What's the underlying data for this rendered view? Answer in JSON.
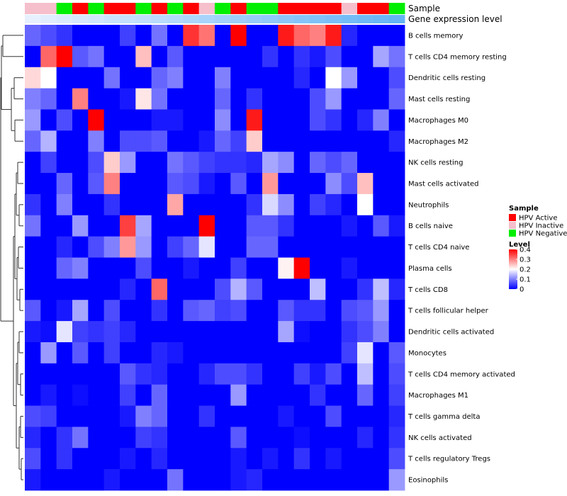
{
  "chart_data": {
    "type": "heatmap",
    "title": "",
    "track_labels": {
      "sample": "Sample",
      "expression": "Gene expression level"
    },
    "rows": [
      "B cells memory",
      "T cells CD4 memory resting",
      "Dendritic cells resting",
      "Mast cells resting",
      "Macrophages M0",
      "Macrophages M2",
      "NK cells resting",
      "Mast cells activated",
      "Neutrophils",
      "B cells naive",
      "T cells CD4 naive",
      "Plasma cells",
      "T cells CD8",
      "T cells follicular helper",
      "Dendritic cells activated",
      "Monocytes",
      "T cells CD4 memory activated",
      "Macrophages M1",
      "T cells gamma delta",
      "NK cells activated",
      "T cells regulatory  Tregs",
      "Eosinophils"
    ],
    "sample_groups": [
      "Inactive",
      "Inactive",
      "Negative",
      "Active",
      "Negative",
      "Active",
      "Active",
      "Negative",
      "Active",
      "Negative",
      "Active",
      "Inactive",
      "Negative",
      "Active",
      "Negative",
      "Negative",
      "Active",
      "Active",
      "Active",
      "Active",
      "Inactive",
      "Active",
      "Active",
      "Negative"
    ],
    "values": [
      [
        0.08,
        0.06,
        0.04,
        0,
        0,
        0,
        0.05,
        0,
        0.09,
        0,
        0.36,
        0.31,
        0,
        0.4,
        0,
        0,
        0.38,
        0.32,
        0.3,
        0.38,
        0.03,
        0,
        0,
        0
      ],
      [
        0,
        0.32,
        0.4,
        0.07,
        0.09,
        0,
        0,
        0.25,
        0,
        0.07,
        0,
        0,
        0,
        0,
        0,
        0.04,
        0,
        0.04,
        0.02,
        0.06,
        0,
        0,
        0.13,
        0.09
      ],
      [
        0.23,
        0.2,
        0,
        0,
        0,
        0.09,
        0,
        0,
        0.08,
        0.1,
        0,
        0,
        0.1,
        0,
        0,
        0,
        0,
        0.03,
        0,
        0.2,
        0.12,
        0,
        0,
        0.06
      ],
      [
        0.1,
        0.08,
        0,
        0.3,
        0,
        0,
        0.02,
        0.22,
        0.09,
        0,
        0,
        0,
        0.08,
        0,
        0.04,
        0,
        0,
        0,
        0.06,
        0.12,
        0,
        0,
        0,
        0.08
      ],
      [
        0.12,
        0,
        0.06,
        0,
        0.4,
        0,
        0,
        0,
        0.02,
        0.02,
        0,
        0,
        0.11,
        0,
        0.38,
        0,
        0,
        0,
        0.06,
        0.04,
        0,
        0.03,
        0.1,
        0
      ],
      [
        0.08,
        0.14,
        0,
        0,
        0.1,
        0,
        0.06,
        0.06,
        0.07,
        0,
        0,
        0.02,
        0.08,
        0.05,
        0.24,
        0,
        0,
        0,
        0,
        0,
        0,
        0,
        0,
        0.03
      ],
      [
        0,
        0.05,
        0,
        0,
        0.06,
        0.24,
        0.12,
        0,
        0,
        0.09,
        0.07,
        0.05,
        0.04,
        0.04,
        0.03,
        0.13,
        0.11,
        0,
        0.08,
        0.06,
        0.08,
        0,
        0,
        0
      ],
      [
        0,
        0,
        0.08,
        0,
        0.07,
        0.3,
        0,
        0,
        0,
        0.07,
        0.06,
        0.02,
        0,
        0.07,
        0,
        0.28,
        0,
        0,
        0,
        0.11,
        0.06,
        0.25,
        0,
        0
      ],
      [
        0.04,
        0,
        0.1,
        0,
        0,
        0.04,
        0,
        0,
        0,
        0.27,
        0,
        0,
        0,
        0,
        0.04,
        0.17,
        0.11,
        0,
        0.05,
        0.03,
        0,
        0.2,
        0,
        0
      ],
      [
        0.09,
        0,
        0,
        0.12,
        0,
        0,
        0.35,
        0.13,
        0,
        0,
        0,
        0.4,
        0,
        0,
        0.07,
        0.07,
        0.04,
        0,
        0,
        0,
        0.02,
        0,
        0.07,
        0.02
      ],
      [
        0,
        0,
        0.03,
        0,
        0.06,
        0.1,
        0.28,
        0.12,
        0,
        0.05,
        0.08,
        0.18,
        0,
        0,
        0.08,
        0.08,
        0,
        0,
        0,
        0,
        0,
        0,
        0,
        0
      ],
      [
        0,
        0,
        0.08,
        0.1,
        0,
        0,
        0,
        0.06,
        0,
        0,
        0.02,
        0,
        0,
        0.05,
        0,
        0,
        0.21,
        0.4,
        0,
        0,
        0.02,
        0,
        0,
        0
      ],
      [
        0,
        0,
        0,
        0,
        0,
        0,
        0.03,
        0,
        0.32,
        0,
        0,
        0,
        0.06,
        0.14,
        0.07,
        0,
        0,
        0,
        0.15,
        0,
        0,
        0.04,
        0.15,
        0.03
      ],
      [
        0.07,
        0,
        0.02,
        0.13,
        0,
        0.06,
        0,
        0,
        0.04,
        0,
        0.07,
        0.08,
        0.05,
        0.06,
        0,
        0,
        0.07,
        0.04,
        0.04,
        0,
        0.06,
        0.07,
        0.12,
        0
      ],
      [
        0.02,
        0.01,
        0.18,
        0.05,
        0.04,
        0.05,
        0.03,
        0,
        0,
        0,
        0,
        0,
        0,
        0,
        0,
        0,
        0.13,
        0.01,
        0,
        0,
        0.04,
        0.06,
        0.1,
        0
      ],
      [
        0,
        0.12,
        0,
        0.07,
        0,
        0.05,
        0,
        0,
        0.03,
        0.02,
        0,
        0,
        0,
        0,
        0,
        0,
        0,
        0,
        0,
        0,
        0.05,
        0.18,
        0,
        0.07
      ],
      [
        0,
        0,
        0,
        0,
        0,
        0,
        0.07,
        0.04,
        0.03,
        0,
        0,
        0.03,
        0.06,
        0.06,
        0.04,
        0,
        0,
        0.05,
        0.02,
        0.06,
        0,
        0.15,
        0,
        0.06
      ],
      [
        0,
        0.02,
        0,
        0.01,
        0,
        0,
        0.05,
        0,
        0.08,
        0,
        0,
        0,
        0,
        0.12,
        0,
        0,
        0,
        0,
        0.04,
        0,
        0,
        0.08,
        0,
        0.05
      ],
      [
        0.06,
        0.05,
        0,
        0,
        0,
        0,
        0.02,
        0.1,
        0.08,
        0,
        0,
        0.04,
        0,
        0,
        0,
        0,
        0.02,
        0,
        0,
        0.06,
        0,
        0,
        0,
        0.03
      ],
      [
        0.03,
        0,
        0.04,
        0.09,
        0,
        0,
        0,
        0.05,
        0.04,
        0,
        0,
        0,
        0,
        0.07,
        0,
        0,
        0,
        0.01,
        0,
        0,
        0,
        0.03,
        0,
        0.04
      ],
      [
        0.06,
        0,
        0.04,
        0,
        0,
        0,
        0.02,
        0,
        0.03,
        0,
        0,
        0,
        0,
        0.02,
        0,
        0.02,
        0,
        0.04,
        0,
        0.02,
        0,
        0,
        0,
        0.06
      ],
      [
        0.02,
        0,
        0,
        0,
        0,
        0.02,
        0,
        0,
        0,
        0.09,
        0,
        0,
        0,
        0.02,
        0.03,
        0,
        0,
        0,
        0,
        0,
        0,
        0,
        0,
        0.12
      ]
    ],
    "legend_sample": {
      "title": "Sample",
      "items": [
        {
          "label": "HPV Active",
          "color": "#ff0000"
        },
        {
          "label": "HPV Inactive",
          "color": "#f5bfcc"
        },
        {
          "label": "HPV Negative",
          "color": "#00ee00"
        }
      ]
    },
    "legend_level": {
      "title": "Level",
      "ticks": [
        "0.4",
        "0.3",
        "0.2",
        "0.1",
        "0"
      ],
      "range": [
        0,
        0.4
      ]
    },
    "colors": {
      "low": "#0000ff",
      "mid": "#ffffff",
      "high": "#ff0000",
      "expression_track": "#74b4f2",
      "dendrogram": "#333333"
    }
  }
}
